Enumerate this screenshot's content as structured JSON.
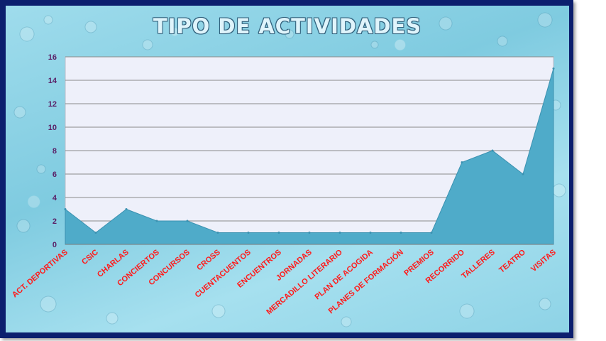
{
  "title": "TIPO DE ACTIVIDADES",
  "colors": {
    "area_fill": "#4fabc9",
    "area_stroke": "#3b92b1",
    "plot_background": "#eef0fa",
    "gridline": "#8a8a8a",
    "x_label": "#ff1a1a",
    "y_label": "#5a1f66",
    "frame": "#0c1f6e"
  },
  "chart_data": {
    "type": "area",
    "title": "TIPO DE ACTIVIDADES",
    "xlabel": "",
    "ylabel": "",
    "categories": [
      "ACT. DEPORTIVAS",
      "CSIC",
      "CHARLAS",
      "CONCIERTOS",
      "CONCURSOS",
      "CROSS",
      "CUENTACUENTOS",
      "ENCUENTROS",
      "JORNADAS",
      "MERCADILLO LITERARIO",
      "PLAN DE ACOGIDA",
      "PLANES DE FORMACIÓN",
      "PREMIOS",
      "RECORRIDO",
      "TALLERES",
      "TEATRO",
      "VISITAS"
    ],
    "values": [
      3,
      1,
      3,
      2,
      2,
      1,
      1,
      1,
      1,
      1,
      1,
      1,
      1,
      7,
      8,
      6,
      15
    ],
    "ylim": [
      0,
      16
    ],
    "yticks": [
      "0",
      "2",
      "4",
      "6",
      "8",
      "10",
      "12",
      "14",
      "16"
    ],
    "grid": true,
    "legend": "none"
  }
}
